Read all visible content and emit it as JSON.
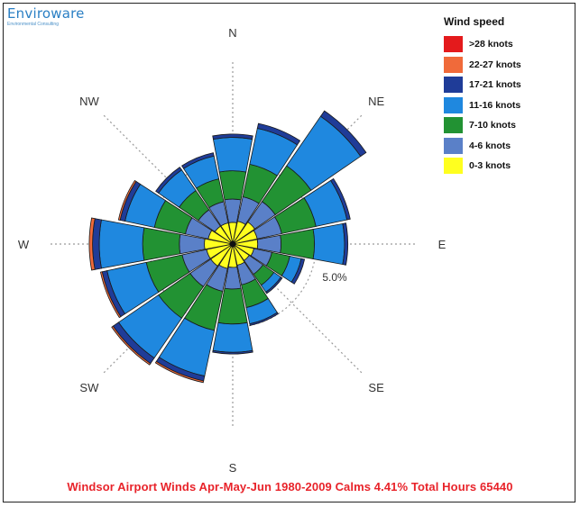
{
  "logo": {
    "name": "Enviroware",
    "subtitle": "Environmental Consulting"
  },
  "legend": {
    "title": "Wind speed",
    "items": [
      {
        "label": ">28 knots",
        "color": "#e41a1c"
      },
      {
        "label": "22-27 knots",
        "color": "#f06a3a"
      },
      {
        "label": "17-21 knots",
        "color": "#1f3c98"
      },
      {
        "label": "11-16  knots",
        "color": "#1f88df"
      },
      {
        "label": "7-10 knots",
        "color": "#229233"
      },
      {
        "label": "4-6 knots",
        "color": "#5a80c8"
      },
      {
        "label": "0-3 knots",
        "color": "#ffff1f"
      }
    ]
  },
  "footer": "Windsor Airport Winds Apr-May-Jun 1980-2009 Calms 4.41% Total Hours 65440",
  "chart_data": {
    "type": "wind-rose",
    "title": "Windsor Airport Winds Apr-May-Jun 1980-2009 Calms 4.41% Total Hours 65440",
    "unit": "percent frequency",
    "ring_label": "5.0%",
    "ring_value": 5.0,
    "calms_percent": 4.41,
    "total_hours": 65440,
    "compass_labels": [
      "N",
      "NE",
      "E",
      "SE",
      "S",
      "SW",
      "W",
      "NW"
    ],
    "directions": [
      "N",
      "NNE",
      "NE",
      "ENE",
      "E",
      "ESE",
      "SE",
      "SSE",
      "S",
      "SSW",
      "SW",
      "WSW",
      "W",
      "WNW",
      "NW",
      "NNW"
    ],
    "speed_bins": [
      "0-3 knots",
      "4-6 knots",
      "7-10 knots",
      "11-16  knots",
      "17-21 knots",
      "22-27 knots",
      ">28 knots"
    ],
    "series": [
      {
        "name": "0-3 knots",
        "values": [
          1.3,
          1.4,
          1.6,
          1.5,
          1.5,
          1.3,
          1.2,
          1.3,
          1.4,
          1.5,
          1.6,
          1.6,
          1.7,
          1.5,
          1.3,
          1.3
        ]
      },
      {
        "name": "4-6 knots",
        "values": [
          1.4,
          1.5,
          1.5,
          1.5,
          1.4,
          1.1,
          1.0,
          1.2,
          1.3,
          1.4,
          1.5,
          1.5,
          1.5,
          1.4,
          1.2,
          1.3
        ]
      },
      {
        "name": "7-10 knots",
        "values": [
          1.7,
          2.0,
          2.6,
          2.1,
          2.0,
          1.1,
          0.8,
          1.4,
          2.1,
          2.4,
          2.3,
          2.2,
          2.2,
          1.9,
          1.4,
          1.4
        ]
      },
      {
        "name": "11-16  knots",
        "values": [
          2.0,
          2.2,
          3.6,
          1.9,
          1.8,
          0.7,
          0.5,
          1.0,
          1.7,
          2.8,
          2.9,
          2.4,
          2.6,
          1.8,
          1.5,
          1.4
        ]
      },
      {
        "name": "17-21 knots",
        "values": [
          0.2,
          0.3,
          0.4,
          0.2,
          0.2,
          0.2,
          0.1,
          0.1,
          0.1,
          0.3,
          0.4,
          0.3,
          0.4,
          0.3,
          0.2,
          0.2
        ]
      },
      {
        "name": "22-27 knots",
        "values": [
          0.0,
          0.0,
          0.0,
          0.0,
          0.0,
          0.0,
          0.0,
          0.0,
          0.0,
          0.1,
          0.1,
          0.1,
          0.2,
          0.1,
          0.0,
          0.0
        ]
      },
      {
        "name": ">28 knots",
        "values": [
          0.0,
          0.0,
          0.0,
          0.0,
          0.0,
          0.0,
          0.0,
          0.0,
          0.0,
          0.0,
          0.0,
          0.0,
          0.0,
          0.0,
          0.0,
          0.0
        ]
      }
    ],
    "grid": true
  }
}
